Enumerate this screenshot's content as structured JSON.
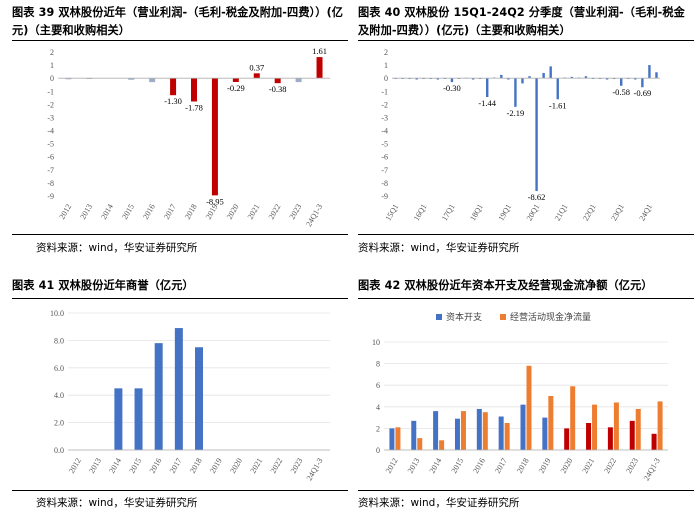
{
  "source_text": "资料来源：wind，华安证券研究所",
  "chart_data": [
    {
      "type": "bar",
      "title": "图表 39 双林股份近年（营业利润-（毛利-税金及附加-四费））(亿元)（主要和收购相关）",
      "categories": [
        "2012",
        "2013",
        "2014",
        "2015",
        "2016",
        "2017",
        "2018",
        "2019",
        "2020",
        "2021",
        "2022",
        "2023",
        "24Q1-3"
      ],
      "values": [
        -0.08,
        -0.05,
        0.0,
        -0.12,
        -0.3,
        -1.3,
        -1.78,
        -8.95,
        -0.29,
        0.37,
        -0.38,
        -0.3,
        1.61
      ],
      "data_labels": [
        {
          "index": 5,
          "text": "-1.30"
        },
        {
          "index": 6,
          "text": "-1.78"
        },
        {
          "index": 7,
          "text": "-8.95"
        },
        {
          "index": 8,
          "text": "-0.29"
        },
        {
          "index": 9,
          "text": "0.37"
        },
        {
          "index": 10,
          "text": "-0.38"
        },
        {
          "index": 12,
          "text": "1.61"
        }
      ],
      "ylim": [
        -9,
        2
      ],
      "yticks": [
        "2",
        "1",
        "0",
        "-1",
        "-2",
        "-3",
        "-4",
        "-5",
        "-6",
        "-7",
        "-8",
        "-9"
      ],
      "colors": {
        "negative_gray": "#9dadc8",
        "red": "#c00000",
        "blue": "#4472c4"
      },
      "bar_colors": [
        "#9dadc8",
        "#9dadc8",
        "#9dadc8",
        "#9dadc8",
        "#9dadc8",
        "#c00000",
        "#c00000",
        "#c00000",
        "#c00000",
        "#c00000",
        "#c00000",
        "#9dadc8",
        "#c00000"
      ]
    },
    {
      "type": "bar",
      "title": "图表 40 双林股份 15Q1-24Q2 分季度（营业利润-（毛利-税金及附加-四费））(亿元)（主要和收购相关）",
      "categories": [
        "15Q1",
        "15Q2",
        "15Q3",
        "15Q4",
        "16Q1",
        "16Q2",
        "16Q3",
        "16Q4",
        "17Q1",
        "17Q2",
        "17Q3",
        "17Q4",
        "18Q1",
        "18Q2",
        "18Q3",
        "18Q4",
        "19Q1",
        "19Q2",
        "19Q3",
        "19Q4",
        "20Q1",
        "20Q2",
        "20Q3",
        "20Q4",
        "21Q1",
        "21Q2",
        "21Q3",
        "21Q4",
        "22Q1",
        "22Q2",
        "22Q3",
        "22Q4",
        "23Q1",
        "23Q2",
        "23Q3",
        "23Q4",
        "24Q1",
        "24Q2"
      ],
      "x_tick_labels": [
        "15Q1",
        "16Q1",
        "17Q1",
        "18Q1",
        "19Q1",
        "20Q1",
        "21Q1",
        "22Q1",
        "23Q1",
        "24Q1"
      ],
      "values": [
        -0.05,
        -0.05,
        -0.03,
        -0.1,
        -0.05,
        -0.05,
        -0.1,
        -0.05,
        -0.3,
        -0.05,
        0.03,
        -0.1,
        -0.05,
        -1.44,
        0.05,
        0.25,
        -0.1,
        -2.19,
        -0.4,
        0.15,
        -8.62,
        0.4,
        0.9,
        -1.61,
        0.05,
        0.1,
        0.05,
        0.15,
        -0.05,
        -0.05,
        -0.1,
        -0.05,
        -0.58,
        -0.05,
        -0.1,
        -0.69,
        1.0,
        0.45
      ],
      "data_labels": [
        {
          "index": 8,
          "text": "-0.30"
        },
        {
          "index": 13,
          "text": "-1.44"
        },
        {
          "index": 17,
          "text": "-2.19"
        },
        {
          "index": 20,
          "text": "-8.62"
        },
        {
          "index": 23,
          "text": "-1.61"
        },
        {
          "index": 32,
          "text": "-0.58"
        },
        {
          "index": 35,
          "text": "-0.69"
        }
      ],
      "ylim": [
        -9,
        2
      ],
      "yticks": [
        "2",
        "1",
        "0",
        "-1",
        "-2",
        "-3",
        "-4",
        "-5",
        "-6",
        "-7",
        "-8",
        "-9"
      ],
      "colors": {
        "bar": "#4472c4"
      }
    },
    {
      "type": "bar",
      "title": "图表 41 双林股份近年商誉（亿元）",
      "categories": [
        "2012",
        "2013",
        "2014",
        "2015",
        "2016",
        "2017",
        "2018",
        "2019",
        "2020",
        "2021",
        "2022",
        "2023",
        "24Q1-3"
      ],
      "values": [
        0,
        0,
        4.5,
        4.5,
        7.8,
        8.9,
        7.5,
        0,
        0,
        0,
        0,
        0,
        0
      ],
      "ylim": [
        0,
        10
      ],
      "yticks": [
        "10.0",
        "8.0",
        "6.0",
        "4.0",
        "2.0",
        "0.0"
      ],
      "colors": {
        "bar": "#4472c4"
      }
    },
    {
      "type": "bar",
      "title": "图表 42 双林股份近年资本开支及经营现金流净额（亿元）",
      "categories": [
        "2012",
        "2013",
        "2014",
        "2015",
        "2016",
        "2017",
        "2018",
        "2019",
        "2020",
        "2021",
        "2022",
        "2023",
        "24Q1-3"
      ],
      "series": [
        {
          "name": "资本开支",
          "values": [
            2.0,
            2.7,
            3.6,
            2.9,
            3.8,
            3.1,
            4.2,
            3.0,
            2.0,
            2.5,
            2.1,
            2.7,
            1.5
          ]
        },
        {
          "name": "经营活动现金净流量",
          "values": [
            2.1,
            1.1,
            0.9,
            3.6,
            3.5,
            2.5,
            7.8,
            5.0,
            5.9,
            4.2,
            4.4,
            3.8,
            4.5
          ]
        }
      ],
      "bar_colors_series1": [
        "#4472c4",
        "#4472c4",
        "#4472c4",
        "#4472c4",
        "#4472c4",
        "#4472c4",
        "#4472c4",
        "#4472c4",
        "#c00000",
        "#c00000",
        "#c00000",
        "#c00000",
        "#c00000"
      ],
      "legend": "top",
      "ylim": [
        0,
        10
      ],
      "yticks": [
        "10",
        "8",
        "6",
        "4",
        "2",
        "0"
      ],
      "colors": {
        "capex_blue": "#4472c4",
        "capex_red": "#c00000",
        "opcf": "#ed7d31"
      }
    }
  ]
}
